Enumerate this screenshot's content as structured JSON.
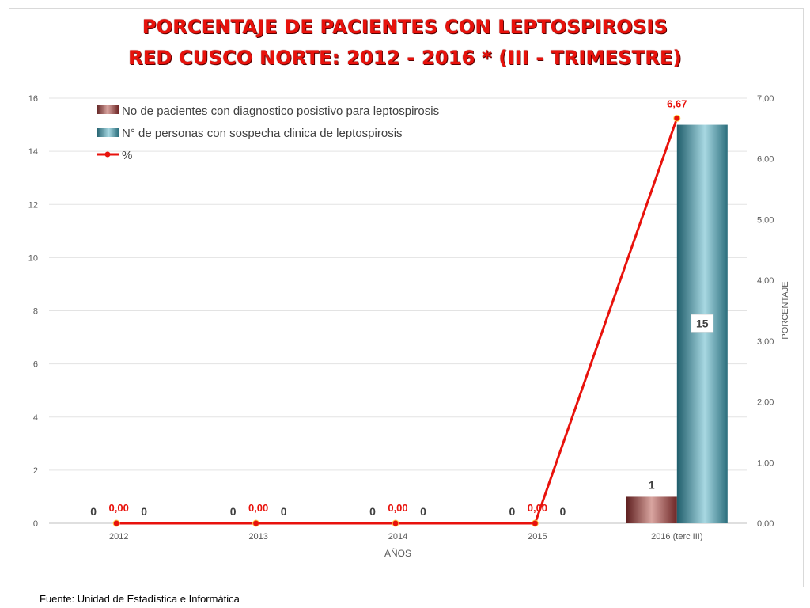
{
  "title_line1": "PORCENTAJE DE PACIENTES CON LEPTOSPIROSIS",
  "title_line2": "RED CUSCO NORTE: 2012 - 2016 * (III - TRIMESTRE)",
  "source": "Fuente: Unidad de Estadística e Informática",
  "colors": {
    "positive_bar": "#8b3a3a",
    "suspect_bar": "#3b8a9a",
    "percent_line": "#e8120c",
    "title": "#e8120c"
  },
  "chart_data": {
    "type": "bar",
    "categories": [
      "2012",
      "2013",
      "2014",
      "2015",
      "2016 (terc III)"
    ],
    "series": [
      {
        "name": "No de pacientes con diagnostico posistivo para leptospirosis",
        "type": "bar",
        "axis": "left",
        "values": [
          0,
          0,
          0,
          0,
          1
        ],
        "labels": [
          "0",
          "0",
          "0",
          "0",
          "1"
        ]
      },
      {
        "name": "N° de personas con sospecha clinica de leptospirosis",
        "type": "bar",
        "axis": "left",
        "values": [
          0,
          0,
          0,
          0,
          15
        ],
        "labels": [
          "0",
          "0",
          "0",
          "0",
          "15"
        ]
      },
      {
        "name": "%",
        "type": "line",
        "axis": "right",
        "values": [
          0,
          0,
          0,
          0,
          6.67
        ],
        "labels": [
          "0,00",
          "0,00",
          "0,00",
          "0,00",
          "6,67"
        ]
      }
    ],
    "xlabel": "AÑOS",
    "ylabel": "",
    "y2label": "PORCENTAJE",
    "ylim": [
      0,
      16
    ],
    "y_ticks": [
      "0",
      "2",
      "4",
      "6",
      "8",
      "10",
      "12",
      "14",
      "16"
    ],
    "y2lim": [
      0,
      7
    ],
    "y2_ticks": [
      "0,00",
      "1,00",
      "2,00",
      "3,00",
      "4,00",
      "5,00",
      "6,00",
      "7,00"
    ],
    "grid": true,
    "legend_position": "top-left"
  }
}
